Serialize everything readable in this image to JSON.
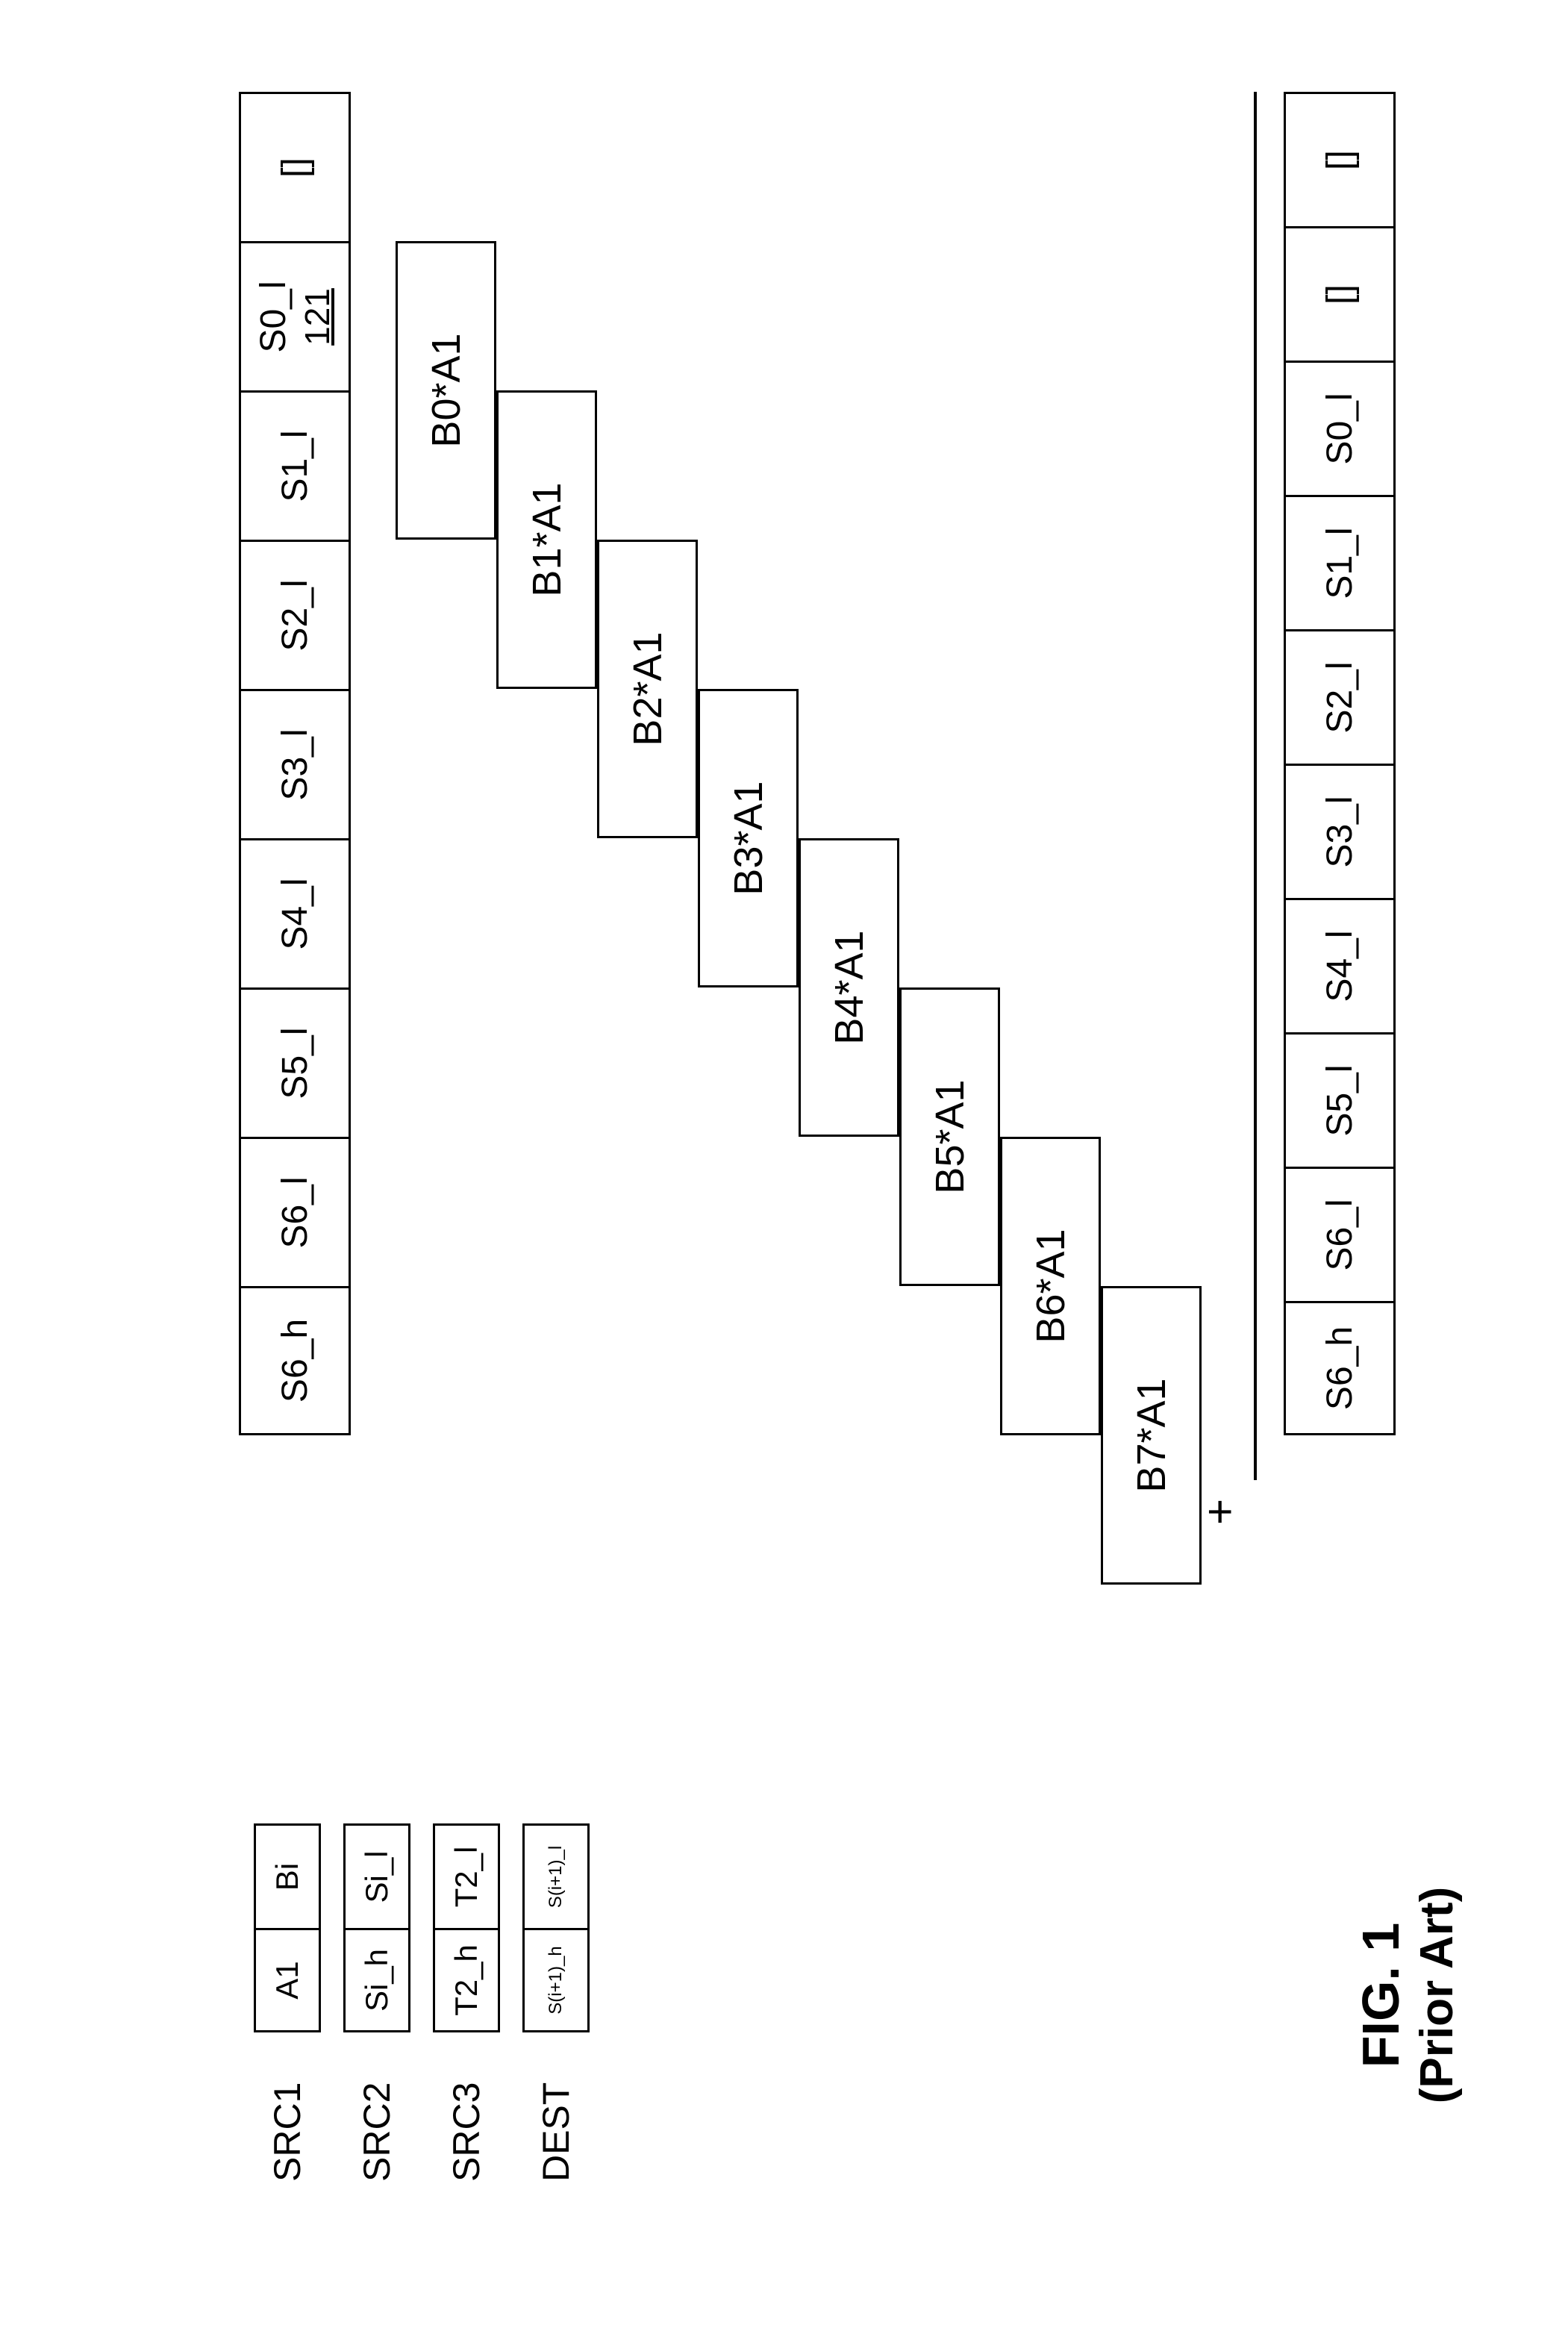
{
  "figure": {
    "title": "FIG. 1",
    "subtitle": "(Prior Art)"
  },
  "registers": {
    "rows": [
      {
        "label": "SRC1",
        "cells": [
          "A1",
          "Bi"
        ],
        "smallText": false
      },
      {
        "label": "SRC2",
        "cells": [
          "Si_h",
          "Si_l"
        ],
        "smallText": false
      },
      {
        "label": "SRC3",
        "cells": [
          "T2_h",
          "T2_l"
        ],
        "smallText": false
      },
      {
        "label": "DEST",
        "cells": [
          "S(i+1)_h",
          "S(i+1)_l"
        ],
        "smallText": true
      }
    ]
  },
  "topStrip": {
    "cells": [
      {
        "text": "S6_h"
      },
      {
        "text": "S6_l"
      },
      {
        "text": "S5_l"
      },
      {
        "text": "S4_l"
      },
      {
        "text": "S3_l"
      },
      {
        "text": "S2_l"
      },
      {
        "text": "S1_l"
      },
      {
        "text": "S0_l",
        "sub": "121"
      },
      {
        "text": "[]"
      }
    ]
  },
  "diagonal": {
    "boxes": [
      {
        "label": "B0*A1",
        "col": 6
      },
      {
        "label": "B1*A1",
        "col": 5
      },
      {
        "label": "B2*A1",
        "col": 4
      },
      {
        "label": "B3*A1",
        "col": 3
      },
      {
        "label": "B4*A1",
        "col": 2
      },
      {
        "label": "B5*A1",
        "col": 1
      },
      {
        "label": "B6*A1",
        "col": 0
      },
      {
        "label": "B7*A1",
        "col": -1
      }
    ],
    "boxWidthCells": 2,
    "cellWidth": 200,
    "rowStep": 135,
    "startTopOffset": 0
  },
  "plus": {
    "text": "+"
  },
  "bottomStrip": {
    "cells": [
      {
        "text": "S6_h"
      },
      {
        "text": "S6_l"
      },
      {
        "text": "S5_l"
      },
      {
        "text": "S4_l"
      },
      {
        "text": "S3_l"
      },
      {
        "text": "S2_l"
      },
      {
        "text": "S1_l"
      },
      {
        "text": "S0_l"
      },
      {
        "text": "[]"
      },
      {
        "text": "[]"
      }
    ]
  },
  "layout": {
    "stripLeft": 1200,
    "stripTop": 320,
    "diagTop": 530,
    "sumLineTop": 1680,
    "bottomStripTop": 1720,
    "plusLeft": 1080,
    "plusTop": 1600,
    "cellWidth": 200,
    "cellHeight": 150,
    "sumLineLeft": 1140,
    "sumLineWidth": 1860
  },
  "colors": {
    "bg": "#ffffff",
    "text": "#000000",
    "border": "#000000"
  }
}
